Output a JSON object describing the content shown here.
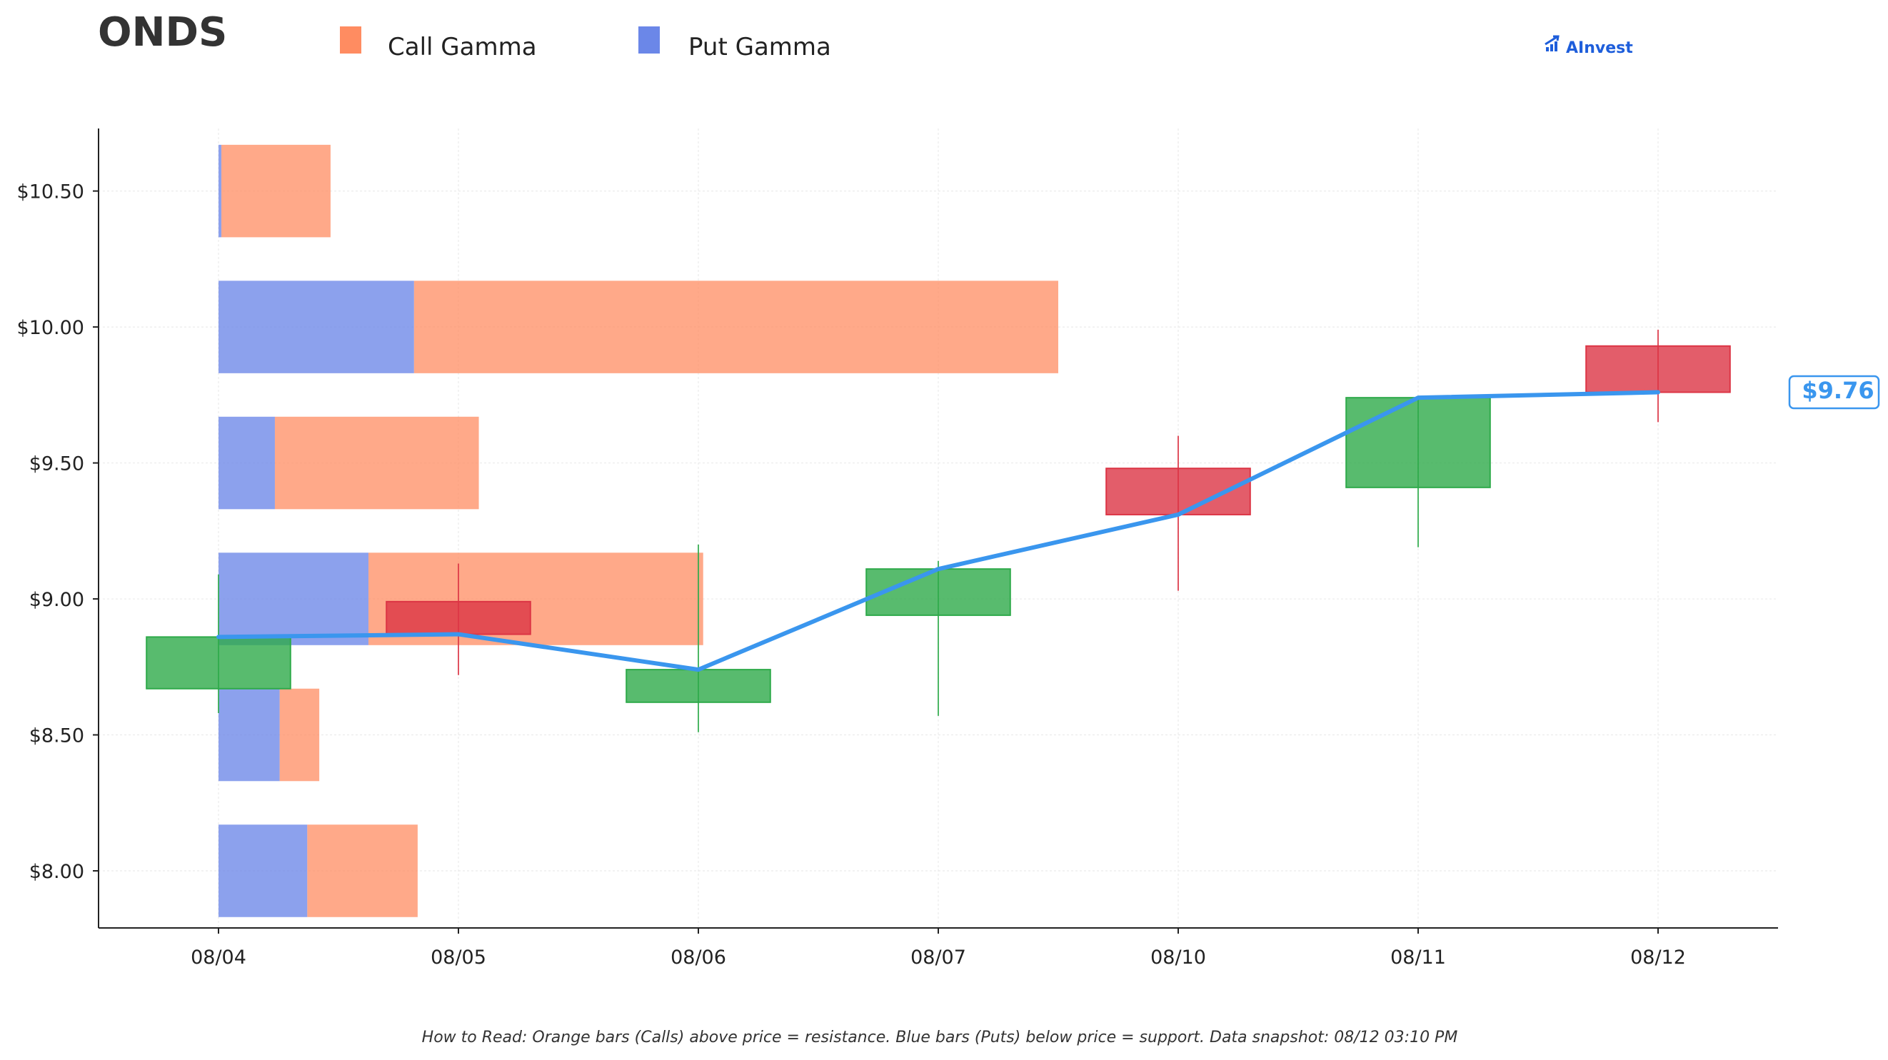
{
  "ticker": "ONDS",
  "brand": {
    "name": "AInvest",
    "icon": "bar-chart-arrow-icon"
  },
  "legend": {
    "call_label": "Call Gamma",
    "put_label": "Put Gamma"
  },
  "colors": {
    "call": "#FF8C61",
    "put": "#6B87E8",
    "up_candle": "#2EAA4A",
    "down_candle": "#DC3545",
    "price_line": "#3A96EE",
    "brand": "#1E5EDB",
    "axis": "#222222",
    "grid": "#EBEBEB"
  },
  "footnote": "How to Read: Orange bars (Calls) above price = resistance. Blue bars (Puts) below price = support. Data snapshot: 08/12 03:10 PM",
  "current_price_label": "$9.76",
  "chart_data": {
    "type": "candlestick",
    "title": "ONDS",
    "x_categories": [
      "08/04",
      "08/05",
      "08/06",
      "08/07",
      "08/10",
      "08/11",
      "08/12"
    ],
    "y_tick_values": [
      8.0,
      8.5,
      9.0,
      9.5,
      10.0,
      10.5
    ],
    "y_tick_labels": [
      "$8.00",
      "$8.50",
      "$9.00",
      "$9.50",
      "$10.00",
      "$10.50"
    ],
    "ylim": [
      7.79,
      10.73
    ],
    "xlim": [
      -0.5,
      6.5
    ],
    "grid": true,
    "legend_position": "top",
    "candles": [
      {
        "date": "08/04",
        "open": 8.67,
        "high": 9.09,
        "low": 8.58,
        "close": 8.86
      },
      {
        "date": "08/05",
        "open": 8.99,
        "high": 9.13,
        "low": 8.72,
        "close": 8.87
      },
      {
        "date": "08/06",
        "open": 8.62,
        "high": 9.2,
        "low": 8.51,
        "close": 8.74
      },
      {
        "date": "08/07",
        "open": 8.94,
        "high": 9.14,
        "low": 8.57,
        "close": 9.11
      },
      {
        "date": "08/10",
        "open": 9.48,
        "high": 9.6,
        "low": 9.03,
        "close": 9.31
      },
      {
        "date": "08/11",
        "open": 9.41,
        "high": 9.74,
        "low": 9.19,
        "close": 9.74
      },
      {
        "date": "08/12",
        "open": 9.93,
        "high": 9.99,
        "low": 9.65,
        "close": 9.76
      }
    ],
    "price_line": {
      "name": "Close",
      "values": [
        8.86,
        8.87,
        8.74,
        9.11,
        9.31,
        9.74,
        9.76
      ]
    },
    "gamma_bars": {
      "base_x": 0,
      "bar_height": 0.34,
      "levels": [
        {
          "strike": 8.0,
          "put": 0.37,
          "call": 0.46
        },
        {
          "strike": 8.5,
          "put": 0.255,
          "call": 0.165
        },
        {
          "strike": 9.0,
          "put": 0.625,
          "call": 1.395
        },
        {
          "strike": 9.5,
          "put": 0.235,
          "call": 0.85
        },
        {
          "strike": 10.0,
          "put": 0.815,
          "call": 2.685
        },
        {
          "strike": 10.5,
          "put": 0.012,
          "call": 0.455
        }
      ]
    },
    "candle_width": 0.6
  }
}
